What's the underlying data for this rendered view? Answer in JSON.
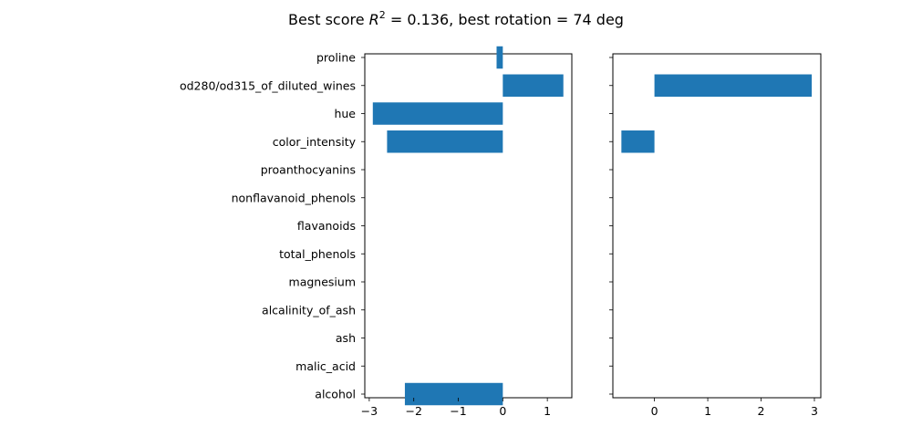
{
  "figure": {
    "title_prefix": "Best score ",
    "title_r": "R",
    "title_sup": "2",
    "title_suffix": " = 0.136, best rotation = 74 deg"
  },
  "chart_data": [
    {
      "type": "bar",
      "orientation": "horizontal",
      "categories": [
        "alcohol",
        "malic_acid",
        "ash",
        "alcalinity_of_ash",
        "magnesium",
        "total_phenols",
        "flavanoids",
        "nonflavanoid_phenols",
        "proanthocyanins",
        "color_intensity",
        "hue",
        "od280/od315_of_diluted_wines",
        "proline"
      ],
      "values": [
        -2.2,
        0,
        0,
        0,
        0,
        0,
        0,
        0,
        0,
        -2.6,
        -2.92,
        1.36,
        -0.14
      ],
      "xlim": [
        -3.1,
        1.55
      ],
      "xticks": [
        -3,
        -2,
        -1,
        0,
        1
      ],
      "xtick_labels": [
        "−3",
        "−2",
        "−1",
        "0",
        "1"
      ],
      "color": "#1f77b4",
      "show_category_labels": true
    },
    {
      "type": "bar",
      "orientation": "horizontal",
      "categories": [
        "alcohol",
        "malic_acid",
        "ash",
        "alcalinity_of_ash",
        "magnesium",
        "total_phenols",
        "flavanoids",
        "nonflavanoid_phenols",
        "proanthocyanins",
        "color_intensity",
        "hue",
        "od280/od315_of_diluted_wines",
        "proline"
      ],
      "values": [
        0,
        0,
        0,
        0,
        0,
        0,
        0,
        0,
        0,
        -0.62,
        0,
        2.95,
        0
      ],
      "xlim": [
        -0.78,
        3.12
      ],
      "xticks": [
        0,
        1,
        2,
        3
      ],
      "xtick_labels": [
        "0",
        "1",
        "2",
        "3"
      ],
      "color": "#1f77b4",
      "show_category_labels": false
    }
  ]
}
